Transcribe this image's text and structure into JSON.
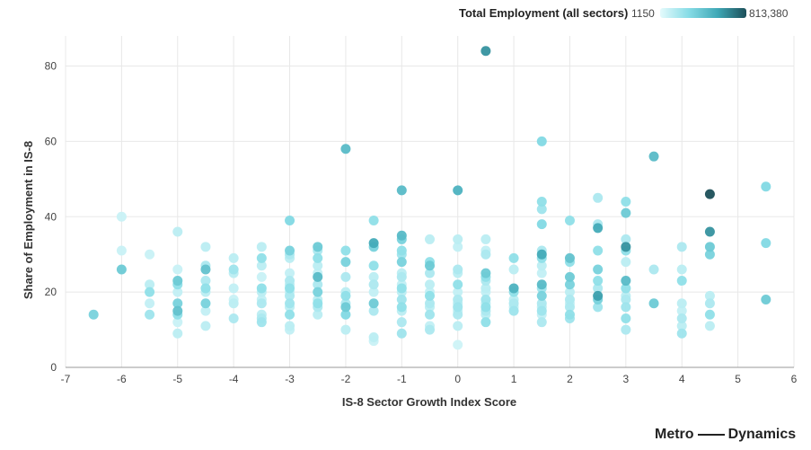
{
  "legend": {
    "title": "Total Employment (all sectors)",
    "min_label": "1150",
    "max_label": "813,380",
    "colors": [
      "#e4fafc",
      "#86dce6",
      "#3fa8b6",
      "#1c4f59"
    ]
  },
  "brand": {
    "left": "Metro",
    "right": "Dynamics"
  },
  "chart_data": {
    "type": "scatter",
    "xlabel": "IS-8 Sector Growth Index Score",
    "ylabel": "Share of Employment in IS-8",
    "xlim": [
      -7,
      6
    ],
    "ylim": [
      0,
      88
    ],
    "xticks": [
      -7,
      -6,
      -5,
      -4,
      -3,
      -2,
      -1,
      0,
      1,
      2,
      3,
      4,
      5,
      6
    ],
    "yticks": [
      0,
      20,
      40,
      60,
      80
    ],
    "grid": true,
    "color_scale": {
      "min": 1150,
      "max": 813380,
      "label": "Total Employment (all sectors)"
    },
    "points": [
      {
        "x": -6.5,
        "y": 14,
        "c": 0.4
      },
      {
        "x": -6,
        "y": 40,
        "c": 0.1
      },
      {
        "x": -6,
        "y": 31,
        "c": 0.1
      },
      {
        "x": -6,
        "y": 26,
        "c": 0.45
      },
      {
        "x": -5.5,
        "y": 30,
        "c": 0.1
      },
      {
        "x": -5.5,
        "y": 22,
        "c": 0.15
      },
      {
        "x": -5.5,
        "y": 20,
        "c": 0.3
      },
      {
        "x": -5.5,
        "y": 17,
        "c": 0.12
      },
      {
        "x": -5.5,
        "y": 14,
        "c": 0.25
      },
      {
        "x": -5,
        "y": 36,
        "c": 0.15
      },
      {
        "x": -5,
        "y": 26,
        "c": 0.1
      },
      {
        "x": -5,
        "y": 23,
        "c": 0.45
      },
      {
        "x": -5,
        "y": 22,
        "c": 0.3
      },
      {
        "x": -5,
        "y": 20,
        "c": 0.12
      },
      {
        "x": -5,
        "y": 17,
        "c": 0.4
      },
      {
        "x": -5,
        "y": 15,
        "c": 0.5
      },
      {
        "x": -5,
        "y": 14,
        "c": 0.3
      },
      {
        "x": -5,
        "y": 12,
        "c": 0.1
      },
      {
        "x": -5,
        "y": 9,
        "c": 0.15
      },
      {
        "x": -4.5,
        "y": 32,
        "c": 0.15
      },
      {
        "x": -4.5,
        "y": 27,
        "c": 0.2
      },
      {
        "x": -4.5,
        "y": 26,
        "c": 0.5
      },
      {
        "x": -4.5,
        "y": 23,
        "c": 0.2
      },
      {
        "x": -4.5,
        "y": 21,
        "c": 0.3
      },
      {
        "x": -4.5,
        "y": 20,
        "c": 0.15
      },
      {
        "x": -4.5,
        "y": 17,
        "c": 0.4
      },
      {
        "x": -4.5,
        "y": 15,
        "c": 0.12
      },
      {
        "x": -4.5,
        "y": 11,
        "c": 0.15
      },
      {
        "x": -4,
        "y": 29,
        "c": 0.15
      },
      {
        "x": -4,
        "y": 26,
        "c": 0.25
      },
      {
        "x": -4,
        "y": 25,
        "c": 0.15
      },
      {
        "x": -4,
        "y": 21,
        "c": 0.12
      },
      {
        "x": -4,
        "y": 18,
        "c": 0.1
      },
      {
        "x": -4,
        "y": 17,
        "c": 0.15
      },
      {
        "x": -4,
        "y": 13,
        "c": 0.2
      },
      {
        "x": -3.5,
        "y": 32,
        "c": 0.15
      },
      {
        "x": -3.5,
        "y": 29,
        "c": 0.3
      },
      {
        "x": -3.5,
        "y": 27,
        "c": 0.15
      },
      {
        "x": -3.5,
        "y": 24,
        "c": 0.1
      },
      {
        "x": -3.5,
        "y": 21,
        "c": 0.3
      },
      {
        "x": -3.5,
        "y": 20,
        "c": 0.15
      },
      {
        "x": -3.5,
        "y": 18,
        "c": 0.12
      },
      {
        "x": -3.5,
        "y": 17,
        "c": 0.2
      },
      {
        "x": -3.5,
        "y": 14,
        "c": 0.15
      },
      {
        "x": -3.5,
        "y": 13,
        "c": 0.2
      },
      {
        "x": -3.5,
        "y": 12,
        "c": 0.25
      },
      {
        "x": -3,
        "y": 39,
        "c": 0.35
      },
      {
        "x": -3,
        "y": 31,
        "c": 0.4
      },
      {
        "x": -3,
        "y": 30,
        "c": 0.2
      },
      {
        "x": -3,
        "y": 29,
        "c": 0.15
      },
      {
        "x": -3,
        "y": 25,
        "c": 0.12
      },
      {
        "x": -3,
        "y": 23,
        "c": 0.2
      },
      {
        "x": -3,
        "y": 22,
        "c": 0.15
      },
      {
        "x": -3,
        "y": 21,
        "c": 0.3
      },
      {
        "x": -3,
        "y": 20,
        "c": 0.12
      },
      {
        "x": -3,
        "y": 19,
        "c": 0.2
      },
      {
        "x": -3,
        "y": 17,
        "c": 0.25
      },
      {
        "x": -3,
        "y": 16,
        "c": 0.15
      },
      {
        "x": -3,
        "y": 14,
        "c": 0.3
      },
      {
        "x": -3,
        "y": 11,
        "c": 0.15
      },
      {
        "x": -3,
        "y": 10,
        "c": 0.12
      },
      {
        "x": -2.5,
        "y": 32,
        "c": 0.45
      },
      {
        "x": -2.5,
        "y": 31,
        "c": 0.2
      },
      {
        "x": -2.5,
        "y": 29,
        "c": 0.3
      },
      {
        "x": -2.5,
        "y": 27,
        "c": 0.15
      },
      {
        "x": -2.5,
        "y": 25,
        "c": 0.12
      },
      {
        "x": -2.5,
        "y": 24,
        "c": 0.55
      },
      {
        "x": -2.5,
        "y": 22,
        "c": 0.2
      },
      {
        "x": -2.5,
        "y": 20,
        "c": 0.4
      },
      {
        "x": -2.5,
        "y": 18,
        "c": 0.15
      },
      {
        "x": -2.5,
        "y": 17,
        "c": 0.3
      },
      {
        "x": -2.5,
        "y": 16,
        "c": 0.2
      },
      {
        "x": -2.5,
        "y": 14,
        "c": 0.15
      },
      {
        "x": -2,
        "y": 58,
        "c": 0.55
      },
      {
        "x": -2,
        "y": 31,
        "c": 0.3
      },
      {
        "x": -2,
        "y": 28,
        "c": 0.4
      },
      {
        "x": -2,
        "y": 24,
        "c": 0.2
      },
      {
        "x": -2,
        "y": 20,
        "c": 0.15
      },
      {
        "x": -2,
        "y": 19,
        "c": 0.3
      },
      {
        "x": -2,
        "y": 17,
        "c": 0.2
      },
      {
        "x": -2,
        "y": 16,
        "c": 0.45
      },
      {
        "x": -2,
        "y": 14,
        "c": 0.35
      },
      {
        "x": -2,
        "y": 10,
        "c": 0.15
      },
      {
        "x": -1.5,
        "y": 39,
        "c": 0.3
      },
      {
        "x": -1.5,
        "y": 33,
        "c": 0.65
      },
      {
        "x": -1.5,
        "y": 32,
        "c": 0.4
      },
      {
        "x": -1.5,
        "y": 27,
        "c": 0.3
      },
      {
        "x": -1.5,
        "y": 24,
        "c": 0.15
      },
      {
        "x": -1.5,
        "y": 22,
        "c": 0.2
      },
      {
        "x": -1.5,
        "y": 20,
        "c": 0.12
      },
      {
        "x": -1.5,
        "y": 17,
        "c": 0.45
      },
      {
        "x": -1.5,
        "y": 15,
        "c": 0.2
      },
      {
        "x": -1.5,
        "y": 8,
        "c": 0.15
      },
      {
        "x": -1.5,
        "y": 7,
        "c": 0.1
      },
      {
        "x": -1,
        "y": 47,
        "c": 0.55
      },
      {
        "x": -1,
        "y": 35,
        "c": 0.55
      },
      {
        "x": -1,
        "y": 34,
        "c": 0.4
      },
      {
        "x": -1,
        "y": 31,
        "c": 0.3
      },
      {
        "x": -1,
        "y": 30,
        "c": 0.25
      },
      {
        "x": -1,
        "y": 28,
        "c": 0.4
      },
      {
        "x": -1,
        "y": 25,
        "c": 0.15
      },
      {
        "x": -1,
        "y": 24,
        "c": 0.2
      },
      {
        "x": -1,
        "y": 22,
        "c": 0.12
      },
      {
        "x": -1,
        "y": 21,
        "c": 0.3
      },
      {
        "x": -1,
        "y": 20,
        "c": 0.15
      },
      {
        "x": -1,
        "y": 18,
        "c": 0.25
      },
      {
        "x": -1,
        "y": 16,
        "c": 0.3
      },
      {
        "x": -1,
        "y": 15,
        "c": 0.15
      },
      {
        "x": -1,
        "y": 12,
        "c": 0.2
      },
      {
        "x": -1,
        "y": 9,
        "c": 0.25
      },
      {
        "x": -0.5,
        "y": 34,
        "c": 0.15
      },
      {
        "x": -0.5,
        "y": 28,
        "c": 0.3
      },
      {
        "x": -0.5,
        "y": 27,
        "c": 0.45
      },
      {
        "x": -0.5,
        "y": 25,
        "c": 0.2
      },
      {
        "x": -0.5,
        "y": 22,
        "c": 0.15
      },
      {
        "x": -0.5,
        "y": 20,
        "c": 0.12
      },
      {
        "x": -0.5,
        "y": 19,
        "c": 0.3
      },
      {
        "x": -0.5,
        "y": 17,
        "c": 0.2
      },
      {
        "x": -0.5,
        "y": 16,
        "c": 0.15
      },
      {
        "x": -0.5,
        "y": 14,
        "c": 0.25
      },
      {
        "x": -0.5,
        "y": 11,
        "c": 0.12
      },
      {
        "x": -0.5,
        "y": 10,
        "c": 0.2
      },
      {
        "x": 0,
        "y": 47,
        "c": 0.6
      },
      {
        "x": 0,
        "y": 34,
        "c": 0.15
      },
      {
        "x": 0,
        "y": 32,
        "c": 0.12
      },
      {
        "x": 0,
        "y": 26,
        "c": 0.2
      },
      {
        "x": 0,
        "y": 25,
        "c": 0.15
      },
      {
        "x": 0,
        "y": 22,
        "c": 0.3
      },
      {
        "x": 0,
        "y": 20,
        "c": 0.12
      },
      {
        "x": 0,
        "y": 18,
        "c": 0.2
      },
      {
        "x": 0,
        "y": 17,
        "c": 0.15
      },
      {
        "x": 0,
        "y": 16,
        "c": 0.25
      },
      {
        "x": 0,
        "y": 15,
        "c": 0.12
      },
      {
        "x": 0,
        "y": 14,
        "c": 0.2
      },
      {
        "x": 0,
        "y": 11,
        "c": 0.15
      },
      {
        "x": 0,
        "y": 6,
        "c": 0.08
      },
      {
        "x": 0.5,
        "y": 84,
        "c": 0.75
      },
      {
        "x": 0.5,
        "y": 34,
        "c": 0.15
      },
      {
        "x": 0.5,
        "y": 31,
        "c": 0.12
      },
      {
        "x": 0.5,
        "y": 30,
        "c": 0.2
      },
      {
        "x": 0.5,
        "y": 25,
        "c": 0.45
      },
      {
        "x": 0.5,
        "y": 24,
        "c": 0.3
      },
      {
        "x": 0.5,
        "y": 23,
        "c": 0.2
      },
      {
        "x": 0.5,
        "y": 21,
        "c": 0.15
      },
      {
        "x": 0.5,
        "y": 20,
        "c": 0.12
      },
      {
        "x": 0.5,
        "y": 18,
        "c": 0.25
      },
      {
        "x": 0.5,
        "y": 17,
        "c": 0.15
      },
      {
        "x": 0.5,
        "y": 16,
        "c": 0.3
      },
      {
        "x": 0.5,
        "y": 15,
        "c": 0.2
      },
      {
        "x": 0.5,
        "y": 14,
        "c": 0.15
      },
      {
        "x": 0.5,
        "y": 12,
        "c": 0.3
      },
      {
        "x": 1,
        "y": 29,
        "c": 0.3
      },
      {
        "x": 1,
        "y": 26,
        "c": 0.15
      },
      {
        "x": 1,
        "y": 21,
        "c": 0.6
      },
      {
        "x": 1,
        "y": 20,
        "c": 0.3
      },
      {
        "x": 1,
        "y": 18,
        "c": 0.15
      },
      {
        "x": 1,
        "y": 17,
        "c": 0.2
      },
      {
        "x": 1,
        "y": 16,
        "c": 0.12
      },
      {
        "x": 1,
        "y": 15,
        "c": 0.25
      },
      {
        "x": 1.5,
        "y": 60,
        "c": 0.35
      },
      {
        "x": 1.5,
        "y": 44,
        "c": 0.3
      },
      {
        "x": 1.5,
        "y": 42,
        "c": 0.25
      },
      {
        "x": 1.5,
        "y": 38,
        "c": 0.35
      },
      {
        "x": 1.5,
        "y": 31,
        "c": 0.2
      },
      {
        "x": 1.5,
        "y": 30,
        "c": 0.65
      },
      {
        "x": 1.5,
        "y": 29,
        "c": 0.3
      },
      {
        "x": 1.5,
        "y": 27,
        "c": 0.15
      },
      {
        "x": 1.5,
        "y": 25,
        "c": 0.12
      },
      {
        "x": 1.5,
        "y": 22,
        "c": 0.55
      },
      {
        "x": 1.5,
        "y": 21,
        "c": 0.25
      },
      {
        "x": 1.5,
        "y": 19,
        "c": 0.4
      },
      {
        "x": 1.5,
        "y": 17,
        "c": 0.2
      },
      {
        "x": 1.5,
        "y": 16,
        "c": 0.15
      },
      {
        "x": 1.5,
        "y": 15,
        "c": 0.25
      },
      {
        "x": 1.5,
        "y": 14,
        "c": 0.12
      },
      {
        "x": 1.5,
        "y": 12,
        "c": 0.2
      },
      {
        "x": 2,
        "y": 39,
        "c": 0.3
      },
      {
        "x": 2,
        "y": 29,
        "c": 0.5
      },
      {
        "x": 2,
        "y": 28,
        "c": 0.3
      },
      {
        "x": 2,
        "y": 24,
        "c": 0.45
      },
      {
        "x": 2,
        "y": 22,
        "c": 0.4
      },
      {
        "x": 2,
        "y": 20,
        "c": 0.15
      },
      {
        "x": 2,
        "y": 18,
        "c": 0.2
      },
      {
        "x": 2,
        "y": 17,
        "c": 0.12
      },
      {
        "x": 2,
        "y": 16,
        "c": 0.2
      },
      {
        "x": 2,
        "y": 14,
        "c": 0.3
      },
      {
        "x": 2,
        "y": 13,
        "c": 0.25
      },
      {
        "x": 2.5,
        "y": 45,
        "c": 0.2
      },
      {
        "x": 2.5,
        "y": 38,
        "c": 0.2
      },
      {
        "x": 2.5,
        "y": 37,
        "c": 0.65
      },
      {
        "x": 2.5,
        "y": 31,
        "c": 0.3
      },
      {
        "x": 2.5,
        "y": 26,
        "c": 0.4
      },
      {
        "x": 2.5,
        "y": 23,
        "c": 0.3
      },
      {
        "x": 2.5,
        "y": 21,
        "c": 0.2
      },
      {
        "x": 2.5,
        "y": 19,
        "c": 0.7
      },
      {
        "x": 2.5,
        "y": 18,
        "c": 0.4
      },
      {
        "x": 2.5,
        "y": 16,
        "c": 0.25
      },
      {
        "x": 3,
        "y": 44,
        "c": 0.3
      },
      {
        "x": 3,
        "y": 41,
        "c": 0.45
      },
      {
        "x": 3,
        "y": 34,
        "c": 0.2
      },
      {
        "x": 3,
        "y": 32,
        "c": 0.75
      },
      {
        "x": 3,
        "y": 31,
        "c": 0.3
      },
      {
        "x": 3,
        "y": 28,
        "c": 0.15
      },
      {
        "x": 3,
        "y": 23,
        "c": 0.55
      },
      {
        "x": 3,
        "y": 21,
        "c": 0.3
      },
      {
        "x": 3,
        "y": 19,
        "c": 0.15
      },
      {
        "x": 3,
        "y": 18,
        "c": 0.2
      },
      {
        "x": 3,
        "y": 16,
        "c": 0.25
      },
      {
        "x": 3,
        "y": 13,
        "c": 0.3
      },
      {
        "x": 3,
        "y": 10,
        "c": 0.2
      },
      {
        "x": 3.5,
        "y": 56,
        "c": 0.55
      },
      {
        "x": 3.5,
        "y": 26,
        "c": 0.2
      },
      {
        "x": 3.5,
        "y": 17,
        "c": 0.45
      },
      {
        "x": 4,
        "y": 32,
        "c": 0.2
      },
      {
        "x": 4,
        "y": 26,
        "c": 0.15
      },
      {
        "x": 4,
        "y": 23,
        "c": 0.3
      },
      {
        "x": 4,
        "y": 17,
        "c": 0.15
      },
      {
        "x": 4,
        "y": 15,
        "c": 0.12
      },
      {
        "x": 4,
        "y": 13,
        "c": 0.2
      },
      {
        "x": 4,
        "y": 11,
        "c": 0.15
      },
      {
        "x": 4,
        "y": 9,
        "c": 0.25
      },
      {
        "x": 4.5,
        "y": 46,
        "c": 1.0
      },
      {
        "x": 4.5,
        "y": 36,
        "c": 0.75
      },
      {
        "x": 4.5,
        "y": 32,
        "c": 0.45
      },
      {
        "x": 4.5,
        "y": 30,
        "c": 0.4
      },
      {
        "x": 4.5,
        "y": 19,
        "c": 0.15
      },
      {
        "x": 4.5,
        "y": 17,
        "c": 0.2
      },
      {
        "x": 4.5,
        "y": 14,
        "c": 0.3
      },
      {
        "x": 4.5,
        "y": 11,
        "c": 0.15
      },
      {
        "x": 5.5,
        "y": 48,
        "c": 0.35
      },
      {
        "x": 5.5,
        "y": 33,
        "c": 0.35
      },
      {
        "x": 5.5,
        "y": 18,
        "c": 0.45
      }
    ]
  }
}
